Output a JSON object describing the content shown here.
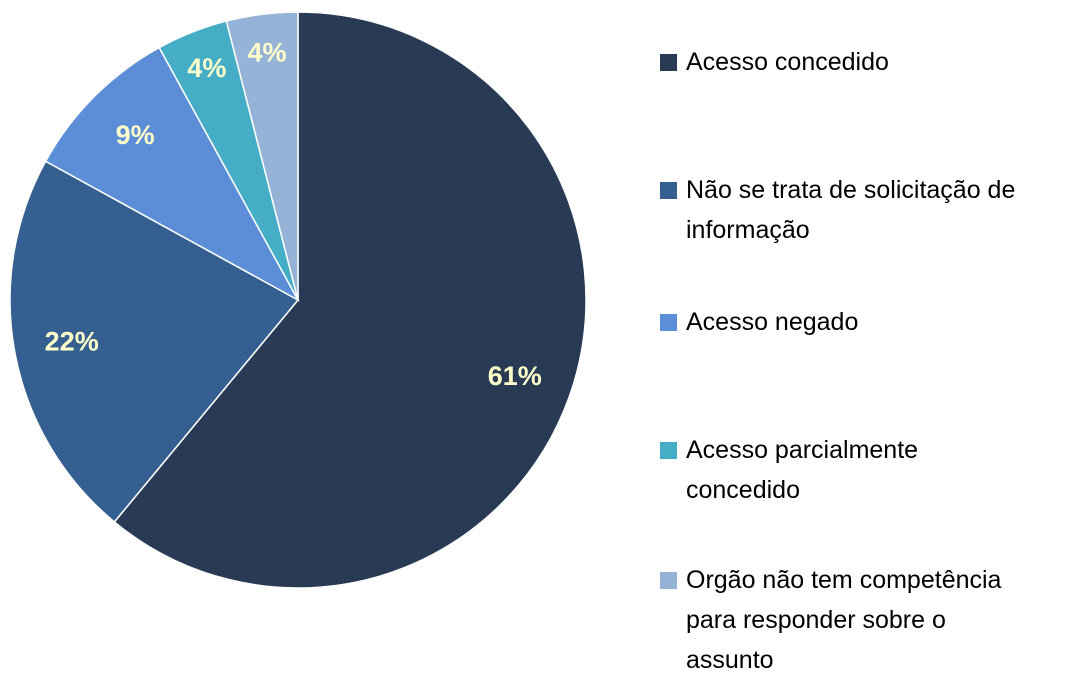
{
  "chart_data": {
    "type": "pie",
    "categories": [
      "Acesso concedido",
      "Não se trata de solicitação de informação",
      "Acesso negado",
      "Acesso parcialmente concedido",
      "Orgão não tem competência para responder sobre o assunto"
    ],
    "values": [
      61,
      22,
      9,
      4,
      4
    ],
    "value_labels": [
      "61%",
      "22%",
      "9%",
      "4%",
      "4%"
    ],
    "colors": [
      "#283a54",
      "#355f91",
      "#5b8ed6",
      "#46adc6",
      "#95b3d7"
    ],
    "legend": "right"
  }
}
